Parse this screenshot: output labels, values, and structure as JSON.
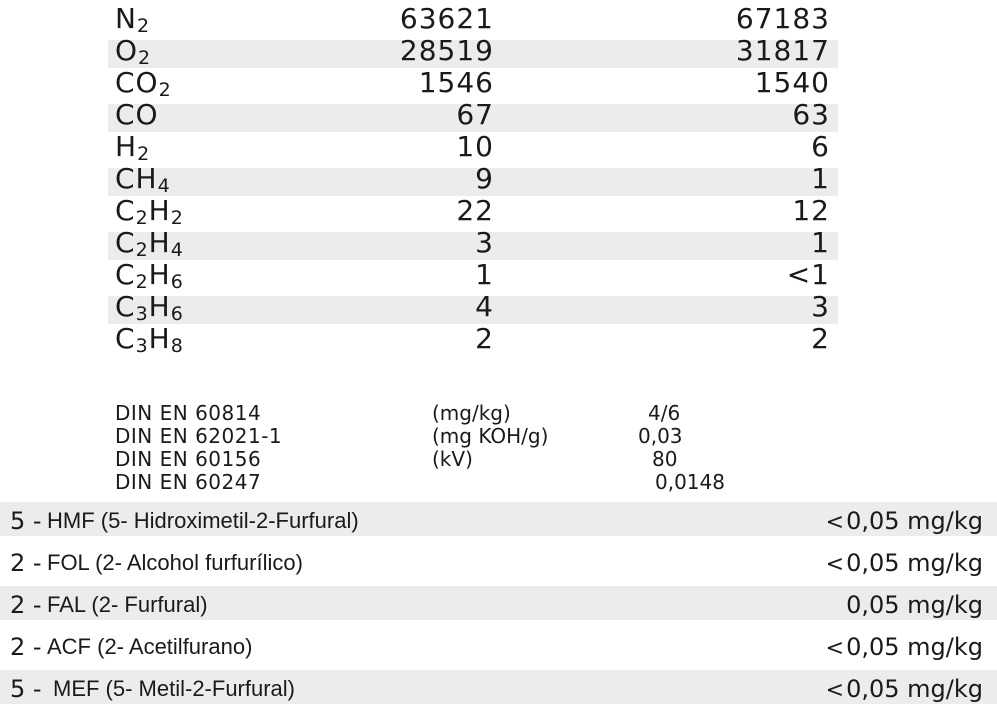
{
  "gases": [
    {
      "base": "N",
      "sub": "2",
      "v1": "63621",
      "v2": "67183",
      "shaded": false
    },
    {
      "base": "O",
      "sub": "2",
      "v1": "28519",
      "v2": "31817",
      "shaded": true
    },
    {
      "base": "CO",
      "sub": "2",
      "v1": "1546",
      "v2": "1540",
      "shaded": false
    },
    {
      "base": "CO",
      "sub": "",
      "v1": "67",
      "v2": "63",
      "shaded": true
    },
    {
      "base": "H",
      "sub": "2",
      "v1": "10",
      "v2": "6",
      "shaded": false
    },
    {
      "base": "CH",
      "sub": "4",
      "v1": "9",
      "v2": "1",
      "shaded": true
    },
    {
      "base": "C",
      "sub": "2",
      "base2": "H",
      "sub2": "2",
      "v1": "22",
      "v2": "12",
      "shaded": false
    },
    {
      "base": "C",
      "sub": "2",
      "base2": "H",
      "sub2": "4",
      "v1": "3",
      "v2": "1",
      "shaded": true
    },
    {
      "base": "C",
      "sub": "2",
      "base2": "H",
      "sub2": "6",
      "v1": "1",
      "v2": "<1",
      "shaded": false
    },
    {
      "base": "C",
      "sub": "3",
      "base2": "H",
      "sub2": "6",
      "v1": "4",
      "v2": "3",
      "shaded": true
    },
    {
      "base": "C",
      "sub": "3",
      "base2": "H",
      "sub2": "8",
      "v1": "2",
      "v2": "2",
      "shaded": false
    }
  ],
  "norms": [
    {
      "standard": "DIN EN 60814",
      "unit": "(mg/kg)",
      "value": "4/6"
    },
    {
      "standard": "DIN EN 62021-1",
      "unit": "(mg KOH/g)",
      "value": "0,03"
    },
    {
      "standard": "DIN EN 60156",
      "unit": "(kV)",
      "value": "80"
    },
    {
      "standard": "DIN EN 60247",
      "unit": "",
      "value": "0,0148"
    }
  ],
  "furans": [
    {
      "index": "5 -",
      "name": "HMF (5- Hidroximetil-2-Furfural)",
      "lt": "<",
      "value": "0,05 mg/kg",
      "shaded": true
    },
    {
      "index": "2 -",
      "name": "FOL (2- Alcohol furfurílico)",
      "lt": "<",
      "value": "0,05 mg/kg",
      "shaded": false
    },
    {
      "index": "2 -",
      "name": "FAL (2- Furfural)",
      "lt": "",
      "value": "0,05 mg/kg",
      "shaded": true
    },
    {
      "index": "2 -",
      "name": "ACF (2- Acetilfurano)",
      "lt": "<",
      "value": "0,05 mg/kg",
      "shaded": false
    },
    {
      "index": "5 -",
      "name": "MEF (5- Metil-2-Furfural)",
      "lt": "<",
      "value": "0,05 mg/kg",
      "shaded": true
    }
  ]
}
